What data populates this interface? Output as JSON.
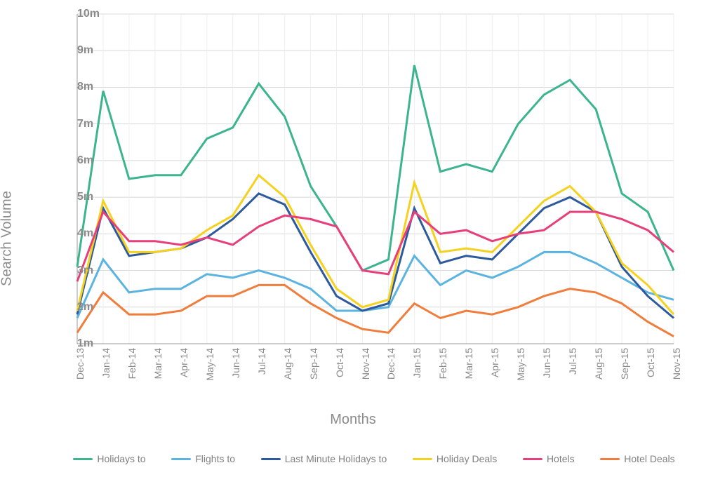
{
  "chart": {
    "type": "line",
    "title": "",
    "xlabel": "Months",
    "ylabel": "Search Volume",
    "background_color": "#ffffff",
    "grid_color": "#d9d9d9",
    "axis_color": "#999999",
    "line_width": 3,
    "label_fontsize": 20,
    "tick_fontsize": 15,
    "ylim_min": 1,
    "ylim_max": 10,
    "ytick_step": 1,
    "yticks": [
      "1m",
      "2m",
      "3m",
      "4m",
      "5m",
      "6m",
      "7m",
      "8m",
      "9m",
      "10m"
    ],
    "categories": [
      "Dec-13",
      "Jan-14",
      "Feb-14",
      "Mar-14",
      "Apr-14",
      "May-14",
      "Jun-14",
      "Jul-14",
      "Aug-14",
      "Sep-14",
      "Oct-14",
      "Nov-14",
      "Dec-14",
      "Jan-15",
      "Feb-15",
      "Mar-15",
      "Apr-15",
      "May-15",
      "Jun-15",
      "Jul-15",
      "Aug-15",
      "Sep-15",
      "Oct-15",
      "Nov-15"
    ],
    "series": [
      {
        "name": "Holidays to",
        "color": "#3cb48e",
        "values": [
          3.1,
          7.9,
          5.5,
          5.6,
          5.6,
          6.6,
          6.9,
          8.1,
          7.2,
          5.3,
          4.2,
          3.0,
          3.3,
          8.6,
          5.7,
          5.9,
          5.7,
          7.0,
          7.8,
          8.2,
          7.4,
          5.1,
          4.6,
          3.0
        ]
      },
      {
        "name": "Flights to",
        "color": "#5bb3e0",
        "values": [
          1.7,
          3.3,
          2.4,
          2.5,
          2.5,
          2.9,
          2.8,
          3.0,
          2.8,
          2.5,
          1.9,
          1.9,
          2.0,
          3.4,
          2.6,
          3.0,
          2.8,
          3.1,
          3.5,
          3.5,
          3.2,
          2.8,
          2.4,
          2.2
        ]
      },
      {
        "name": "Last Minute Holidays to",
        "color": "#2d5a9c",
        "values": [
          1.8,
          4.7,
          3.4,
          3.5,
          3.6,
          3.9,
          4.4,
          5.1,
          4.8,
          3.5,
          2.3,
          1.9,
          2.1,
          4.7,
          3.2,
          3.4,
          3.3,
          4.0,
          4.7,
          5.0,
          4.6,
          3.1,
          2.3,
          1.7
        ]
      },
      {
        "name": "Holiday Deals",
        "color": "#f5d120",
        "values": [
          1.9,
          4.9,
          3.5,
          3.5,
          3.6,
          4.1,
          4.5,
          5.6,
          5.0,
          3.7,
          2.5,
          2.0,
          2.2,
          5.4,
          3.5,
          3.6,
          3.5,
          4.2,
          4.9,
          5.3,
          4.6,
          3.2,
          2.6,
          1.8
        ]
      },
      {
        "name": "Hotels",
        "color": "#e63f7a",
        "values": [
          2.7,
          4.6,
          3.8,
          3.8,
          3.7,
          3.9,
          3.7,
          4.2,
          4.5,
          4.4,
          4.2,
          3.0,
          2.9,
          4.6,
          4.0,
          4.1,
          3.8,
          4.0,
          4.1,
          4.6,
          4.6,
          4.4,
          4.1,
          3.5
        ]
      },
      {
        "name": "Hotel Deals",
        "color": "#f07d3b",
        "values": [
          1.3,
          2.4,
          1.8,
          1.8,
          1.9,
          2.3,
          2.3,
          2.6,
          2.6,
          2.1,
          1.7,
          1.4,
          1.3,
          2.1,
          1.7,
          1.9,
          1.8,
          2.0,
          2.3,
          2.5,
          2.4,
          2.1,
          1.6,
          1.2
        ]
      }
    ],
    "legend_position": "bottom"
  }
}
